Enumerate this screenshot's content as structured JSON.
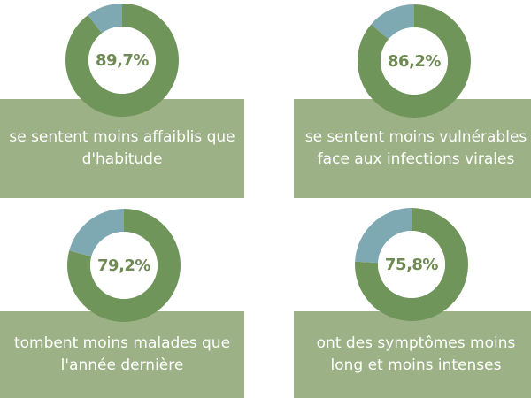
{
  "colors": {
    "filled": "#70955a",
    "remainder": "#7ea9b2",
    "hole": "#ffffff",
    "label_bg": "#9cb286",
    "label_text": "#ffffff",
    "percent_text": "#6f8a55"
  },
  "chart_data": [
    {
      "type": "pie",
      "values": [
        89.7,
        10.3
      ],
      "percent_label": "89,7%",
      "caption": "se sentent moins affaiblis que d'habitude"
    },
    {
      "type": "pie",
      "values": [
        86.2,
        13.8
      ],
      "percent_label": "86,2%",
      "caption": "se sentent moins vulnérables face aux infections virales"
    },
    {
      "type": "pie",
      "values": [
        79.2,
        20.8
      ],
      "percent_label": "79,2%",
      "caption": "tombent moins malades que l'année dernière"
    },
    {
      "type": "pie",
      "values": [
        75.8,
        24.2
      ],
      "percent_label": "75,8%",
      "caption": "ont des symptômes moins long et moins intenses"
    }
  ]
}
